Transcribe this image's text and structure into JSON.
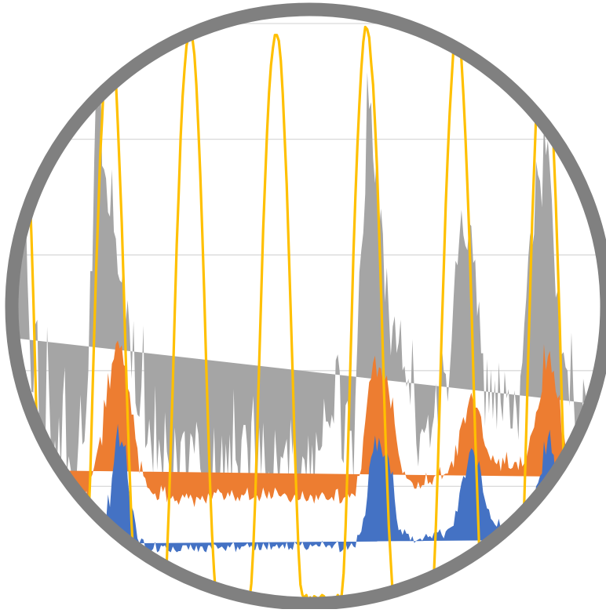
{
  "chart_data": {
    "type": "area",
    "title": "",
    "xlabel": "",
    "ylabel": "",
    "ylim": [
      0,
      5
    ],
    "grid": true,
    "legend": "none",
    "frame": "circle",
    "x_start": 0,
    "x_step": 1,
    "x_count": 300,
    "series": [
      {
        "kind": "stacked-area",
        "color": "#4472C4",
        "values": [
          0.5,
          0.44,
          0.56,
          0.53,
          0.53,
          0.52,
          0.63,
          0.56,
          0.49,
          0.51,
          0.49,
          0.48,
          0.48,
          0.45,
          0.45,
          0.45,
          0.45,
          0.45,
          0.45,
          0.45,
          0.45,
          0.45,
          0.45,
          0.45,
          0.45,
          0.45,
          0.45,
          0.45,
          0.45,
          0.45,
          0.45,
          0.45,
          0.45,
          0.45,
          0.45,
          0.45,
          0.46,
          0.44,
          0.5,
          0.55,
          0.48,
          0.59,
          0.52,
          0.58,
          0.52,
          0.73,
          0.69,
          0.93,
          0.82,
          1.07,
          1.2,
          1.4,
          1.54,
          1.34,
          1.39,
          1.34,
          1.36,
          1.07,
          0.91,
          0.83,
          0.78,
          0.68,
          0.55,
          0.51,
          0.55,
          0.54,
          0.47,
          0.43,
          0.44,
          0.44,
          0.46,
          0.52,
          0.43,
          0.44,
          0.49,
          0.48,
          0.49,
          0.45,
          0.44,
          0.43,
          0.48,
          0.45,
          0.43,
          0.44,
          0.44,
          0.49,
          0.49,
          0.49,
          0.45,
          0.5,
          0.46,
          0.44,
          0.49,
          0.43,
          0.48,
          0.48,
          0.44,
          0.43,
          0.49,
          0.49,
          0.45,
          0.5,
          0.49,
          0.46,
          0.47,
          0.48,
          0.46,
          0.44,
          0.49,
          0.47,
          0.5,
          0.52,
          0.43,
          0.48,
          0.45,
          0.48,
          0.48,
          0.49,
          0.51,
          0.47,
          0.49,
          0.45,
          0.45,
          0.51,
          0.45,
          0.45,
          0.51,
          0.48,
          0.45,
          0.52,
          0.45,
          0.48,
          0.48,
          0.5,
          0.46,
          0.48,
          0.5,
          0.46,
          0.52,
          0.45,
          0.47,
          0.45,
          0.52,
          0.5,
          0.49,
          0.49,
          0.52,
          0.47,
          0.45,
          0.46,
          0.5,
          0.48,
          0.49,
          0.5,
          0.48,
          0.48,
          0.53,
          0.5,
          0.47,
          0.49,
          0.49,
          0.46,
          0.49,
          0.51,
          0.53,
          0.43,
          0.44,
          0.46,
          0.51,
          0.45,
          0.48,
          0.51,
          0.48,
          0.47,
          0.58,
          0.58,
          0.61,
          0.72,
          0.75,
          0.91,
          1.16,
          1.25,
          1.3,
          1.44,
          1.3,
          1.42,
          1.34,
          1.25,
          1.27,
          1.3,
          1.24,
          1.1,
          1.13,
          0.89,
          0.72,
          0.62,
          0.63,
          0.58,
          0.63,
          0.59,
          0.59,
          0.53,
          0.57,
          0.51,
          0.53,
          0.54,
          0.55,
          0.53,
          0.56,
          0.59,
          0.56,
          0.57,
          0.55,
          0.6,
          0.61,
          0.6,
          0.63,
          0.58,
          0.55,
          0.61,
          0.63,
          0.64,
          0.65,
          0.66,
          0.79,
          0.78,
          0.94,
          1.03,
          1.09,
          1.07,
          1.18,
          1.29,
          1.33,
          1.31,
          1.24,
          1.17,
          1.22,
          1.11,
          0.95,
          0.88,
          0.81,
          0.8,
          0.72,
          0.7,
          0.67,
          0.65,
          0.72,
          0.64,
          0.67,
          0.65,
          0.71,
          0.68,
          0.66,
          0.68,
          0.65,
          0.71,
          0.64,
          0.72,
          0.68,
          0.69,
          0.71,
          0.75,
          0.83,
          0.86,
          0.89,
          1.0,
          1.03,
          1.09,
          1.11,
          1.39,
          1.27,
          1.42,
          1.49,
          1.29,
          1.27,
          1.04,
          0.96,
          0.96,
          0.77,
          0.72,
          0.58,
          0.59,
          0.55,
          0.56,
          0.53,
          0.58,
          0.57,
          0.58,
          0.59,
          0.6,
          0.52,
          0.55,
          0.56,
          0.61,
          0.55,
          0.56,
          0.54
        ]
      },
      {
        "kind": "stacked-area",
        "color": "#ED7D31",
        "values": [
          0.64,
          0.71,
          0.74,
          0.73,
          0.8,
          0.77,
          0.78,
          0.88,
          0.92,
          0.92,
          0.82,
          0.76,
          0.59,
          0.52,
          0.55,
          0.47,
          0.44,
          0.44,
          0.35,
          0.42,
          0.48,
          0.49,
          0.38,
          0.43,
          0.39,
          0.37,
          0.42,
          0.36,
          0.38,
          0.35,
          0.34,
          0.38,
          0.35,
          0.38,
          0.4,
          0.44,
          0.5,
          0.39,
          0.56,
          0.55,
          0.69,
          0.67,
          0.82,
          0.85,
          0.83,
          1.02,
          0.99,
          1.05,
          1.02,
          0.99,
          0.9,
          0.83,
          0.72,
          0.85,
          0.83,
          0.71,
          0.67,
          0.78,
          0.9,
          0.79,
          0.84,
          0.73,
          0.78,
          0.6,
          0.67,
          0.55,
          0.6,
          0.56,
          0.54,
          0.51,
          0.47,
          0.42,
          0.45,
          0.45,
          0.52,
          0.47,
          0.51,
          0.41,
          0.51,
          0.46,
          0.44,
          0.42,
          0.45,
          0.4,
          0.45,
          0.44,
          0.41,
          0.45,
          0.44,
          0.43,
          0.43,
          0.38,
          0.42,
          0.47,
          0.4,
          0.44,
          0.44,
          0.42,
          0.45,
          0.41,
          0.44,
          0.45,
          0.45,
          0.52,
          0.48,
          0.46,
          0.42,
          0.46,
          0.46,
          0.44,
          0.47,
          0.4,
          0.44,
          0.43,
          0.42,
          0.45,
          0.44,
          0.45,
          0.48,
          0.41,
          0.4,
          0.45,
          0.47,
          0.41,
          0.42,
          0.46,
          0.48,
          0.45,
          0.44,
          0.44,
          0.44,
          0.43,
          0.51,
          0.46,
          0.46,
          0.43,
          0.43,
          0.48,
          0.4,
          0.43,
          0.39,
          0.44,
          0.41,
          0.39,
          0.39,
          0.4,
          0.44,
          0.43,
          0.42,
          0.42,
          0.43,
          0.43,
          0.36,
          0.43,
          0.4,
          0.44,
          0.42,
          0.43,
          0.42,
          0.39,
          0.4,
          0.45,
          0.38,
          0.46,
          0.45,
          0.42,
          0.42,
          0.44,
          0.4,
          0.49,
          0.42,
          0.43,
          0.45,
          0.44,
          0.51,
          0.51,
          0.54,
          0.69,
          0.81,
          0.82,
          0.74,
          0.68,
          0.77,
          0.69,
          0.64,
          0.61,
          0.68,
          0.65,
          0.65,
          0.66,
          0.58,
          0.57,
          0.64,
          0.65,
          0.68,
          0.66,
          0.57,
          0.53,
          0.5,
          0.48,
          0.47,
          0.52,
          0.46,
          0.47,
          0.45,
          0.5,
          0.43,
          0.48,
          0.45,
          0.53,
          0.46,
          0.47,
          0.46,
          0.48,
          0.49,
          0.48,
          0.54,
          0.48,
          0.55,
          0.5,
          0.48,
          0.53,
          0.57,
          0.5,
          0.57,
          0.48,
          0.54,
          0.51,
          0.51,
          0.47,
          0.49,
          0.46,
          0.48,
          0.43,
          0.44,
          0.51,
          0.43,
          0.49,
          0.47,
          0.47,
          0.51,
          0.47,
          0.5,
          0.57,
          0.54,
          0.54,
          0.52,
          0.49,
          0.58,
          0.54,
          0.59,
          0.48,
          0.49,
          0.48,
          0.56,
          0.5,
          0.5,
          0.54,
          0.49,
          0.51,
          0.53,
          0.57,
          0.6,
          0.61,
          0.62,
          0.64,
          0.64,
          0.65,
          0.71,
          0.84,
          0.73,
          0.7,
          0.68,
          0.69,
          0.73,
          0.78,
          0.8,
          0.83,
          0.69,
          0.76,
          0.76,
          0.74,
          0.67,
          0.76,
          0.64,
          0.61,
          0.54,
          0.51,
          0.53,
          0.49,
          0.5,
          0.45,
          0.51,
          0.48,
          0.48,
          0.49,
          0.54,
          0.45
        ]
      },
      {
        "kind": "stacked-area",
        "color": "#A5A5A5",
        "values": [
          1.14,
          1.33,
          1.83,
          2.22,
          2.3,
          2.21,
          1.38,
          0.87,
          0.41,
          0.38,
          1.09,
          1.2,
          0.35,
          0.0,
          0.25,
          0.32,
          1.49,
          0.93,
          0.51,
          0.31,
          0.47,
          0.21,
          0.77,
          0.23,
          0.94,
          1.21,
          0.23,
          0.45,
          0.32,
          0.2,
          0.25,
          0.25,
          0.59,
          0.96,
          0.51,
          0.5,
          0.71,
          1.17,
          1.8,
          1.76,
          2.65,
          3.26,
          2.93,
          3.35,
          2.42,
          1.99,
          1.98,
          1.39,
          1.49,
          1.68,
          1.1,
          0.91,
          0.58,
          0.59,
          0.54,
          0.89,
          0.38,
          0.76,
          0.55,
          0.31,
          0.81,
          0.31,
          0.29,
          0.49,
          0.64,
          1.3,
          0.26,
          0.38,
          0.6,
          0.4,
          0.18,
          0.93,
          0.26,
          0.52,
          0.23,
          0.07,
          0.64,
          0.44,
          0.24,
          0.12,
          0.08,
          0.64,
          0.36,
          0.06,
          0.49,
          0.52,
          0.58,
          0.0,
          0.24,
          0.53,
          0.53,
          0.46,
          0.65,
          0.55,
          0.27,
          0.16,
          0.2,
          0.2,
          0.05,
          0.1,
          0.12,
          0.56,
          0.04,
          0.07,
          0.12,
          0.5,
          0.09,
          0.47,
          0.13,
          0.54,
          0.0,
          0.92,
          0.36,
          0.26,
          0.07,
          0.47,
          0.61,
          0.59,
          0.34,
          0.01,
          0.66,
          0.88,
          0.31,
          0.13,
          0.64,
          0.18,
          0.56,
          0.24,
          0.03,
          0.17,
          0.11,
          0.08,
          0.5,
          0.27,
          0.07,
          0.35,
          0.31,
          0.39,
          0.49,
          0.18,
          0.72,
          0.38,
          0.69,
          0.25,
          0.1,
          0.14,
          0.3,
          0.33,
          0.2,
          0.56,
          0.11,
          0.45,
          0.1,
          0.54,
          0.43,
          0.39,
          0.4,
          0.83,
          0.67,
          0.68,
          0.61,
          0.71,
          0.67,
          1.12,
          1.16,
          1.14,
          0.38,
          0.3,
          0.79,
          0.8,
          0.58,
          0.54,
          0.12,
          0.86,
          1.15,
          1.76,
          1.89,
          1.78,
          1.97,
          2.85,
          2.36,
          2.39,
          1.76,
          1.49,
          1.99,
          1.16,
          1.38,
          1.28,
          0.67,
          0.93,
          0.69,
          0.46,
          0.61,
          0.93,
          0.75,
          0.96,
          1.24,
          0.89,
          0.91,
          0.79,
          0.87,
          0.65,
          1.24,
          0.84,
          0.39,
          0.13,
          0.47,
          0.49,
          0.45,
          0.39,
          0.6,
          0.29,
          0.49,
          0.52,
          0.79,
          0.46,
          0.35,
          1.15,
          0.89,
          0.86,
          0.62,
          0.81,
          1.04,
          1.47,
          1.59,
          1.65,
          1.68,
          1.85,
          1.57,
          1.54,
          1.37,
          1.52,
          1.44,
          1.19,
          1.28,
          0.79,
          0.95,
          0.55,
          0.73,
          0.17,
          0.78,
          0.36,
          0.79,
          0.31,
          0.71,
          0.3,
          0.83,
          0.59,
          0.31,
          0.8,
          0.46,
          0.68,
          0.35,
          0.34,
          0.62,
          0.46,
          0.26,
          0.69,
          0.9,
          1.2,
          1.39,
          1.65,
          1.76,
          1.59,
          1.67,
          2.17,
          2.02,
          1.9,
          1.59,
          1.94,
          1.86,
          1.87,
          1.58,
          1.5,
          1.06,
          0.81,
          0.93,
          0.36,
          0.68,
          0.68,
          0.69,
          0.67,
          0.47,
          1.01,
          0.64,
          0.26,
          0.42,
          0.15,
          0.12,
          0.84,
          0.79,
          0.72
        ]
      },
      {
        "kind": "line",
        "color": "#FFC000",
        "values": [
          3.17,
          3.5,
          3.87,
          4.11,
          4.22,
          4.1,
          3.97,
          3.64,
          3.17,
          2.62,
          1.97,
          1.35,
          0.92,
          0.45,
          0.17,
          0.0,
          0.05,
          0.0,
          0.07,
          0.05,
          0.04,
          0.0,
          0.04,
          0.07,
          0.0,
          0.05,
          0.07,
          0.07,
          0.03,
          0.0,
          0.02,
          0.05,
          0.05,
          0.06,
          0.0,
          0.05,
          0.27,
          0.65,
          1.11,
          1.74,
          2.33,
          2.89,
          3.34,
          3.85,
          4.17,
          4.55,
          4.74,
          4.91,
          4.97,
          4.89,
          4.74,
          4.51,
          4.13,
          3.71,
          3.28,
          2.73,
          2.14,
          1.6,
          1.13,
          0.68,
          0.35,
          0.06,
          0.0,
          0.0,
          0.04,
          0.04,
          0.02,
          0.02,
          0.0,
          0.0,
          0.05,
          0.04,
          0.01,
          0.02,
          0.04,
          0.0,
          0.1,
          0.38,
          0.82,
          1.35,
          1.88,
          2.51,
          3.09,
          3.53,
          4.02,
          4.37,
          4.61,
          4.81,
          4.89,
          4.97,
          4.87,
          4.73,
          4.47,
          4.1,
          3.69,
          3.2,
          2.67,
          2.06,
          1.52,
          1.0,
          0.58,
          0.27,
          0.03,
          0.01,
          0.02,
          0.01,
          0.06,
          0.0,
          0.04,
          0.06,
          0.0,
          0.04,
          0.05,
          0.04,
          0.04,
          0.06,
          0.06,
          0.05,
          0.0,
          0.01,
          0.16,
          0.47,
          0.9,
          1.47,
          2.07,
          2.64,
          3.21,
          3.64,
          4.06,
          4.4,
          4.64,
          4.79,
          4.9,
          4.9,
          4.85,
          4.68,
          4.39,
          4.0,
          3.61,
          3.08,
          2.54,
          1.99,
          1.39,
          0.9,
          0.45,
          0.15,
          0.06,
          0.04,
          0.06,
          0.01,
          0.04,
          0.0,
          0.05,
          0.04,
          0.02,
          0.04,
          0.06,
          0.05,
          0.01,
          0.0,
          0.02,
          0.03,
          0.02,
          0.02,
          0.06,
          0.04,
          0.06,
          0.25,
          0.65,
          1.19,
          1.79,
          2.4,
          3.02,
          3.51,
          3.94,
          4.3,
          4.61,
          4.84,
          4.97,
          4.95,
          4.88,
          4.66,
          4.47,
          4.13,
          3.75,
          3.23,
          2.72,
          2.14,
          1.58,
          1.1,
          0.66,
          0.35,
          0.06,
          0.0,
          0.0,
          0.02,
          0.0,
          0.04,
          0.03,
          0.0,
          0.01,
          0.07,
          0.0,
          0.02,
          0.07,
          0.07,
          0.04,
          0.07,
          0.03,
          0.0,
          0.03,
          0.03,
          0.07,
          0.25,
          0.67,
          1.18,
          1.77,
          2.38,
          2.89,
          3.44,
          3.86,
          4.23,
          4.52,
          4.8,
          5.0,
          4.93,
          4.96,
          4.68,
          4.38,
          4.03,
          3.61,
          3.16,
          2.61,
          2.01,
          1.43,
          0.96,
          0.48,
          0.18,
          0.0,
          0.04,
          0.07,
          0.02,
          0.0,
          0.0,
          0.06,
          0.06,
          0.0,
          0.01,
          0.04,
          0.03,
          0.04,
          0.05,
          0.03,
          0.0,
          0.02,
          0.01,
          0.01,
          0.1,
          0.43,
          0.88,
          1.48,
          2.12,
          2.7,
          3.29,
          3.75,
          4.2,
          4.5,
          4.76,
          4.88,
          4.95,
          4.94,
          4.83,
          4.57,
          4.26,
          3.89,
          3.47,
          2.95,
          2.43,
          1.8,
          1.26,
          0.8,
          0.35,
          0.17,
          0.0,
          0.03,
          0.0,
          0.0,
          0.0,
          0.02,
          0.06,
          0.0,
          0.01,
          0.07,
          0.0,
          0.04,
          0.06
        ]
      }
    ]
  },
  "style": {
    "frame_color": "#808080",
    "grid_color": "#D9D9D9",
    "background": "#FFFFFF"
  }
}
